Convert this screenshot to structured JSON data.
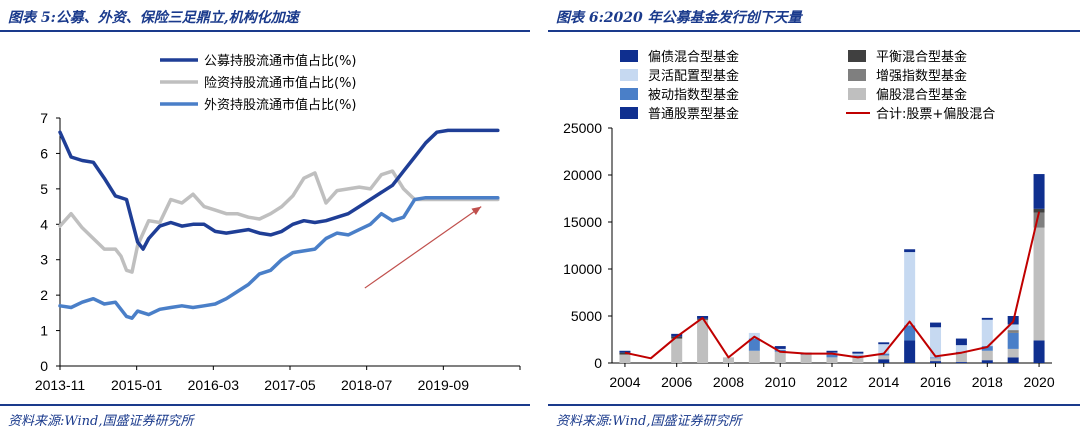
{
  "left_panel": {
    "title": "图表 5:公募、外资、保险三足鼎立,机构化加速",
    "source": "资料来源:Wind,国盛证券研究所"
  },
  "right_panel": {
    "title": "图表 6:2020 年公募基金发行创下天量",
    "source": "资料来源:Wind,国盛证券研究所"
  },
  "chart_data": [
    {
      "type": "line",
      "title": "图表 5:公募、外资、保险三足鼎立,机构化加速",
      "xlabel": "",
      "ylabel": "",
      "x_ticks": [
        "2013-11",
        "2015-01",
        "2016-03",
        "2017-05",
        "2018-07",
        "2019-09"
      ],
      "y_ticks": [
        0,
        1,
        2,
        3,
        4,
        5,
        6,
        7
      ],
      "ylim": [
        0,
        7
      ],
      "xlim": [
        0,
        83
      ],
      "grid": false,
      "legend": "top-left",
      "annotations": [
        {
          "type": "arrow",
          "from": [
            55,
            2.2
          ],
          "to": [
            76,
            4.5
          ],
          "color": "#c0504d"
        }
      ],
      "series": [
        {
          "name": "公募持股流通市值占比(%)",
          "color": "#1f3e96",
          "x": [
            0,
            2,
            4,
            6,
            8,
            10,
            12,
            14,
            15,
            16,
            18,
            20,
            22,
            24,
            26,
            28,
            30,
            32,
            34,
            36,
            38,
            40,
            42,
            44,
            46,
            48,
            50,
            52,
            54,
            56,
            58,
            60,
            62,
            64,
            66,
            68,
            70,
            72,
            74,
            76,
            79
          ],
          "values": [
            6.6,
            5.9,
            5.8,
            5.75,
            5.3,
            4.8,
            4.7,
            3.5,
            3.3,
            3.6,
            3.95,
            4.05,
            3.95,
            4.0,
            4.0,
            3.8,
            3.75,
            3.8,
            3.85,
            3.75,
            3.7,
            3.8,
            4.0,
            4.1,
            4.05,
            4.1,
            4.2,
            4.3,
            4.5,
            4.7,
            4.9,
            5.1,
            5.5,
            5.9,
            6.3,
            6.6,
            6.65,
            6.65,
            6.65,
            6.65,
            6.65
          ]
        },
        {
          "name": "险资持股流通市值占比(%)",
          "color": "#bfbfbf",
          "x": [
            0,
            2,
            4,
            6,
            8,
            10,
            11,
            12,
            13,
            14,
            16,
            18,
            20,
            22,
            24,
            26,
            28,
            30,
            32,
            34,
            36,
            38,
            40,
            42,
            44,
            46,
            48,
            50,
            52,
            54,
            56,
            58,
            60,
            62,
            64,
            66,
            68,
            70,
            72,
            74,
            76,
            79
          ],
          "values": [
            3.95,
            4.3,
            3.9,
            3.6,
            3.3,
            3.3,
            3.1,
            2.7,
            2.65,
            3.4,
            4.1,
            4.05,
            4.7,
            4.6,
            4.85,
            4.5,
            4.4,
            4.3,
            4.3,
            4.2,
            4.15,
            4.3,
            4.5,
            4.8,
            5.3,
            5.45,
            4.6,
            4.95,
            5.0,
            5.05,
            5.0,
            5.4,
            5.5,
            5.0,
            4.7,
            4.7,
            4.7,
            4.7,
            4.7,
            4.7,
            4.7,
            4.7
          ]
        },
        {
          "name": "外资持股流通市值占比(%)",
          "color": "#4a7fc8",
          "x": [
            0,
            2,
            4,
            6,
            8,
            10,
            12,
            13,
            14,
            16,
            18,
            20,
            22,
            24,
            26,
            28,
            30,
            32,
            34,
            36,
            38,
            40,
            42,
            44,
            46,
            48,
            50,
            52,
            54,
            56,
            58,
            60,
            62,
            64,
            66,
            68,
            70,
            72,
            74,
            76,
            79
          ],
          "values": [
            1.7,
            1.65,
            1.8,
            1.9,
            1.75,
            1.8,
            1.4,
            1.35,
            1.55,
            1.45,
            1.6,
            1.65,
            1.7,
            1.65,
            1.7,
            1.75,
            1.9,
            2.1,
            2.3,
            2.6,
            2.7,
            3.0,
            3.2,
            3.25,
            3.3,
            3.6,
            3.75,
            3.7,
            3.85,
            4.0,
            4.3,
            4.1,
            4.2,
            4.7,
            4.75,
            4.75,
            4.75,
            4.75,
            4.75,
            4.75,
            4.75
          ]
        }
      ]
    },
    {
      "type": "bar",
      "stacked": true,
      "title": "图表 6:2020 年公募基金发行创下天量",
      "xlabel": "",
      "ylabel": "",
      "categories": [
        "2004",
        "2005",
        "2006",
        "2007",
        "2008",
        "2009",
        "2010",
        "2011",
        "2012",
        "2013",
        "2014",
        "2015",
        "2016",
        "2017",
        "2018",
        "2019",
        "2020"
      ],
      "x_ticks": [
        "2004",
        "2006",
        "2008",
        "2010",
        "2012",
        "2014",
        "2016",
        "2018",
        "2020"
      ],
      "y_ticks": [
        0,
        5000,
        10000,
        15000,
        20000,
        25000
      ],
      "ylim": [
        0,
        25000
      ],
      "grid": false,
      "legend": "top",
      "series": [
        {
          "name": "普通股票型基金",
          "color": "#0f2f8f",
          "values": [
            0,
            0,
            0,
            0,
            0,
            0,
            0,
            0,
            0,
            0,
            400,
            2400,
            200,
            100,
            300,
            600,
            2400
          ]
        },
        {
          "name": "偏股混合型基金",
          "color": "#bfbfbf",
          "values": [
            900,
            0,
            2600,
            4600,
            600,
            1300,
            1200,
            900,
            600,
            600,
            400,
            0,
            300,
            1000,
            1000,
            900,
            12000
          ]
        },
        {
          "name": "被动指数型基金",
          "color": "#4a7fc8",
          "values": [
            0,
            0,
            0,
            0,
            0,
            1300,
            200,
            0,
            300,
            200,
            200,
            1600,
            100,
            100,
            500,
            1700,
            0
          ]
        },
        {
          "name": "增强指数型基金",
          "color": "#7f7f7f",
          "values": [
            0,
            0,
            0,
            0,
            0,
            0,
            0,
            0,
            0,
            0,
            0,
            0,
            0,
            0,
            0,
            300,
            1600
          ]
        },
        {
          "name": "平衡混合型基金",
          "color": "#404040",
          "values": [
            200,
            0,
            200,
            100,
            0,
            0,
            0,
            0,
            0,
            0,
            0,
            0,
            0,
            0,
            0,
            0,
            400
          ]
        },
        {
          "name": "灵活配置型基金",
          "color": "#c6d9f1",
          "values": [
            0,
            0,
            0,
            0,
            0,
            600,
            100,
            0,
            200,
            200,
            1000,
            7800,
            3200,
            700,
            2800,
            600,
            0
          ]
        },
        {
          "name": "偏债混合型基金",
          "color": "#0f2f8f",
          "values": [
            200,
            0,
            300,
            300,
            0,
            0,
            300,
            200,
            200,
            200,
            200,
            300,
            500,
            700,
            200,
            900,
            3700
          ]
        }
      ],
      "line_series": {
        "name": "合计:股票+偏股混合",
        "color": "#c00000",
        "values": [
          1100,
          500,
          2800,
          4800,
          600,
          2800,
          1200,
          1000,
          1000,
          600,
          1000,
          4400,
          700,
          1100,
          1700,
          4400,
          16100
        ]
      }
    }
  ]
}
